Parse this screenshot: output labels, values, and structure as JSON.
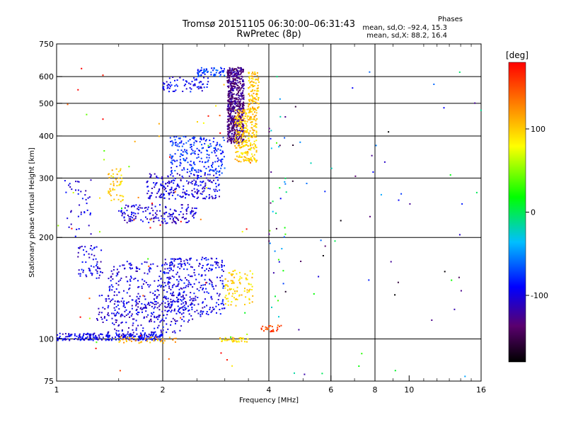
{
  "header": {
    "title_line1": "Tromsø 20151105 06:30:00–06:31:43",
    "title_line2": "RwPretec (8p)"
  },
  "phases": {
    "heading": "Phases",
    "line_o": "mean, sd,O: –92.4, 15.3",
    "line_x": "mean, sd,X: 88.2, 16.4"
  },
  "chart_data": {
    "type": "scatter",
    "xlabel": "Frequency [MHz]",
    "ylabel": "Stationary phase Virtual Height [km]",
    "x_scale": "log",
    "y_scale": "log",
    "xlim": [
      1,
      16
    ],
    "ylim": [
      75,
      750
    ],
    "x_ticks": [
      1,
      2,
      4,
      6,
      8,
      10,
      16
    ],
    "x_gridlines": [
      2,
      4,
      6,
      8
    ],
    "y_ticks": [
      75,
      100,
      200,
      300,
      400,
      500,
      600,
      750
    ],
    "y_gridlines": [
      100,
      200,
      300,
      400,
      500,
      600
    ],
    "grid": true,
    "colorbar": {
      "label": "[deg]",
      "range": [
        -180,
        180
      ],
      "ticks": [
        100,
        0,
        -100
      ],
      "colormap": "rainbow (black → purple → blue → cyan → green → yellow → red)"
    },
    "series": [
      {
        "clusters": [
          {
            "x0": 1.0,
            "x1": 2.0,
            "y0": 99,
            "y1": 104,
            "phase": -95,
            "n": 260
          },
          {
            "x0": 1.4,
            "x1": 2.3,
            "y0": 104,
            "y1": 170,
            "phase": -100,
            "n": 320
          },
          {
            "x0": 1.3,
            "x1": 2.6,
            "y0": 112,
            "y1": 135,
            "phase": -105,
            "n": 150
          },
          {
            "x0": 2.0,
            "x1": 3.0,
            "y0": 118,
            "y1": 175,
            "phase": -95,
            "n": 260
          },
          {
            "x0": 1.15,
            "x1": 1.35,
            "y0": 150,
            "y1": 190,
            "phase": -100,
            "n": 60
          },
          {
            "x0": 1.5,
            "x1": 2.5,
            "y0": 220,
            "y1": 250,
            "phase": -105,
            "n": 160
          },
          {
            "x0": 1.8,
            "x1": 2.9,
            "y0": 260,
            "y1": 310,
            "phase": -100,
            "n": 220
          },
          {
            "x0": 2.1,
            "x1": 3.0,
            "y0": 310,
            "y1": 400,
            "phase": -80,
            "n": 220
          },
          {
            "x0": 2.0,
            "x1": 2.7,
            "y0": 540,
            "y1": 600,
            "phase": -95,
            "n": 70
          },
          {
            "x0": 2.5,
            "x1": 3.0,
            "y0": 600,
            "y1": 640,
            "phase": -75,
            "n": 60
          },
          {
            "x0": 3.05,
            "x1": 3.4,
            "y0": 380,
            "y1": 640,
            "phase": -130,
            "n": 650
          },
          {
            "x0": 1.05,
            "x1": 1.3,
            "y0": 200,
            "y1": 300,
            "phase": -100,
            "n": 40
          }
        ]
      },
      {
        "clusters": [
          {
            "x0": 3.2,
            "x1": 3.7,
            "y0": 335,
            "y1": 480,
            "phase": 100,
            "n": 280
          },
          {
            "x0": 3.5,
            "x1": 3.75,
            "y0": 480,
            "y1": 620,
            "phase": 105,
            "n": 110
          },
          {
            "x0": 3.0,
            "x1": 3.6,
            "y0": 125,
            "y1": 160,
            "phase": 95,
            "n": 90
          },
          {
            "x0": 1.4,
            "x1": 1.55,
            "y0": 255,
            "y1": 320,
            "phase": 100,
            "n": 50
          },
          {
            "x0": 1.5,
            "x1": 2.2,
            "y0": 97,
            "y1": 102,
            "phase": 110,
            "n": 40
          },
          {
            "x0": 2.9,
            "x1": 3.5,
            "y0": 98,
            "y1": 101,
            "phase": 95,
            "n": 40
          },
          {
            "x0": 3.7,
            "x1": 4.4,
            "y0": 105,
            "y1": 110,
            "phase": 150,
            "n": 25
          }
        ]
      },
      {
        "clusters": [
          {
            "x0": 4.0,
            "x1": 4.5,
            "y0": 120,
            "y1": 470,
            "phase": -60,
            "n": 40
          },
          {
            "x0": 4.2,
            "x1": 16.0,
            "y0": 75,
            "y1": 650,
            "phase": -80,
            "n": 60
          },
          {
            "x0": 1.0,
            "x1": 3.8,
            "y0": 80,
            "y1": 650,
            "phase": 120,
            "n": 60
          }
        ]
      }
    ]
  }
}
